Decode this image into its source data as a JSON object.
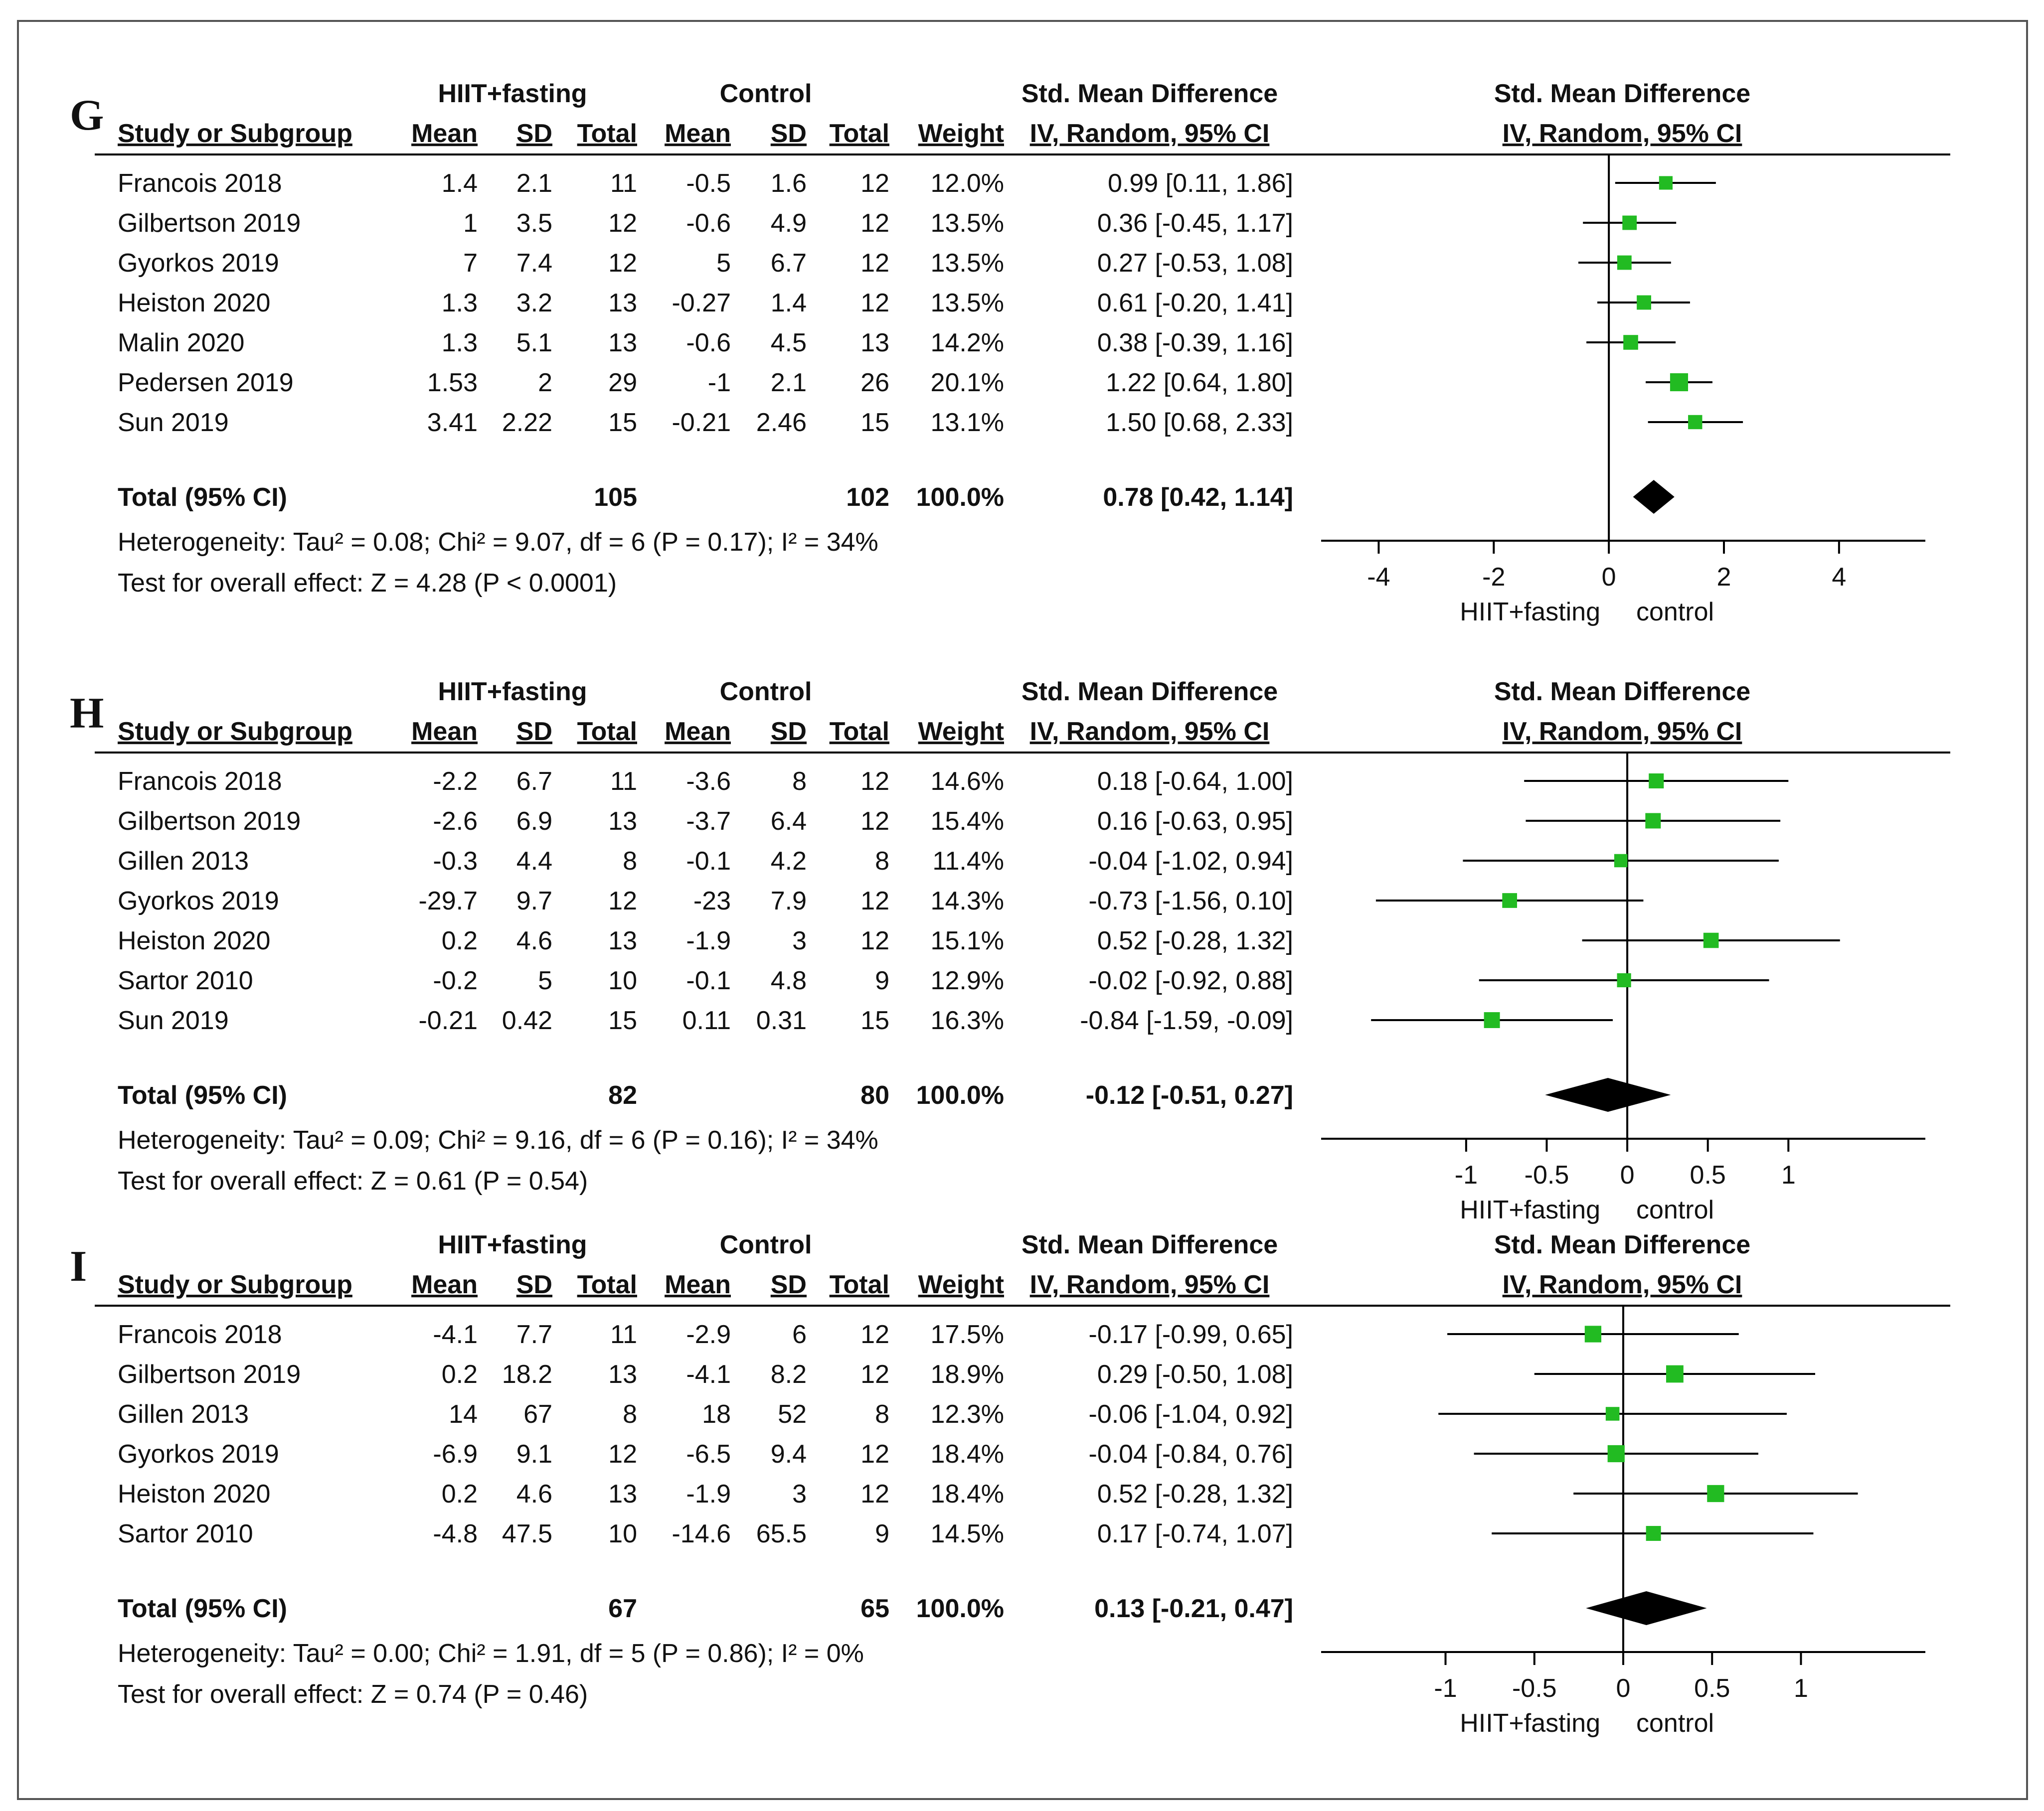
{
  "figure": {
    "colors": {
      "marker": "#22bb22",
      "line": "#000000",
      "diamond": "#000000",
      "text": "#111111",
      "frame": "#555555"
    },
    "col_headers": {
      "group1": "HIIT+fasting",
      "group2": "Control",
      "smd_top": "Std. Mean Difference",
      "smd_ci": "IV, Random, 95% CI",
      "plot_top": "Std. Mean Difference",
      "plot_ci": "IV, Random, 95% CI",
      "study": "Study or Subgroup",
      "mean": "Mean",
      "sd": "SD",
      "total": "Total",
      "weight": "Weight"
    },
    "axis_labels": {
      "left": "HIIT+fasting",
      "right": "control"
    }
  },
  "chart_data": [
    {
      "type": "forest",
      "panel_label": "G",
      "xlim": [
        -5,
        5.5
      ],
      "ticks": [
        "-4",
        "-2",
        "0",
        "2",
        "4"
      ],
      "tick_values": [
        -4,
        -2,
        0,
        2,
        4
      ],
      "studies": [
        {
          "name": "Francois 2018",
          "m1": "1.4",
          "sd1": "2.1",
          "n1": "11",
          "m2": "-0.5",
          "sd2": "1.6",
          "n2": "12",
          "weight": "12.0%",
          "ci_text": "0.99 [0.11, 1.86]",
          "est": 0.99,
          "lo": 0.11,
          "hi": 1.86
        },
        {
          "name": "Gilbertson 2019",
          "m1": "1",
          "sd1": "3.5",
          "n1": "12",
          "m2": "-0.6",
          "sd2": "4.9",
          "n2": "12",
          "weight": "13.5%",
          "ci_text": "0.36 [-0.45, 1.17]",
          "est": 0.36,
          "lo": -0.45,
          "hi": 1.17
        },
        {
          "name": "Gyorkos 2019",
          "m1": "7",
          "sd1": "7.4",
          "n1": "12",
          "m2": "5",
          "sd2": "6.7",
          "n2": "12",
          "weight": "13.5%",
          "ci_text": "0.27 [-0.53, 1.08]",
          "est": 0.27,
          "lo": -0.53,
          "hi": 1.08
        },
        {
          "name": "Heiston 2020",
          "m1": "1.3",
          "sd1": "3.2",
          "n1": "13",
          "m2": "-0.27",
          "sd2": "1.4",
          "n2": "12",
          "weight": "13.5%",
          "ci_text": "0.61 [-0.20, 1.41]",
          "est": 0.61,
          "lo": -0.2,
          "hi": 1.41
        },
        {
          "name": "Malin 2020",
          "m1": "1.3",
          "sd1": "5.1",
          "n1": "13",
          "m2": "-0.6",
          "sd2": "4.5",
          "n2": "13",
          "weight": "14.2%",
          "ci_text": "0.38 [-0.39, 1.16]",
          "est": 0.38,
          "lo": -0.39,
          "hi": 1.16
        },
        {
          "name": "Pedersen 2019",
          "m1": "1.53",
          "sd1": "2",
          "n1": "29",
          "m2": "-1",
          "sd2": "2.1",
          "n2": "26",
          "weight": "20.1%",
          "ci_text": "1.22 [0.64, 1.80]",
          "est": 1.22,
          "lo": 0.64,
          "hi": 1.8
        },
        {
          "name": "Sun 2019",
          "m1": "3.41",
          "sd1": "2.22",
          "n1": "15",
          "m2": "-0.21",
          "sd2": "2.46",
          "n2": "15",
          "weight": "13.1%",
          "ci_text": "1.50 [0.68, 2.33]",
          "est": 1.5,
          "lo": 0.68,
          "hi": 2.33
        }
      ],
      "total": {
        "label": "Total (95% CI)",
        "n1": "105",
        "n2": "102",
        "weight": "100.0%",
        "ci_text": "0.78 [0.42, 1.14]",
        "est": 0.78,
        "lo": 0.42,
        "hi": 1.14
      },
      "heterogeneity": "Heterogeneity: Tau² = 0.08; Chi² = 9.07, df = 6 (P = 0.17); I² = 34%",
      "overall": "Test for overall effect: Z = 4.28 (P < 0.0001)"
    },
    {
      "type": "forest",
      "panel_label": "H",
      "xlim": [
        -1.9,
        1.85
      ],
      "ticks": [
        "-1",
        "-0.5",
        "0",
        "0.5",
        "1"
      ],
      "tick_values": [
        -1,
        -0.5,
        0,
        0.5,
        1
      ],
      "studies": [
        {
          "name": "Francois 2018",
          "m1": "-2.2",
          "sd1": "6.7",
          "n1": "11",
          "m2": "-3.6",
          "sd2": "8",
          "n2": "12",
          "weight": "14.6%",
          "ci_text": "0.18 [-0.64, 1.00]",
          "est": 0.18,
          "lo": -0.64,
          "hi": 1.0
        },
        {
          "name": "Gilbertson 2019",
          "m1": "-2.6",
          "sd1": "6.9",
          "n1": "13",
          "m2": "-3.7",
          "sd2": "6.4",
          "n2": "12",
          "weight": "15.4%",
          "ci_text": "0.16 [-0.63, 0.95]",
          "est": 0.16,
          "lo": -0.63,
          "hi": 0.95
        },
        {
          "name": "Gillen 2013",
          "m1": "-0.3",
          "sd1": "4.4",
          "n1": "8",
          "m2": "-0.1",
          "sd2": "4.2",
          "n2": "8",
          "weight": "11.4%",
          "ci_text": "-0.04 [-1.02, 0.94]",
          "est": -0.04,
          "lo": -1.02,
          "hi": 0.94
        },
        {
          "name": "Gyorkos 2019",
          "m1": "-29.7",
          "sd1": "9.7",
          "n1": "12",
          "m2": "-23",
          "sd2": "7.9",
          "n2": "12",
          "weight": "14.3%",
          "ci_text": "-0.73 [-1.56, 0.10]",
          "est": -0.73,
          "lo": -1.56,
          "hi": 0.1
        },
        {
          "name": "Heiston 2020",
          "m1": "0.2",
          "sd1": "4.6",
          "n1": "13",
          "m2": "-1.9",
          "sd2": "3",
          "n2": "12",
          "weight": "15.1%",
          "ci_text": "0.52 [-0.28, 1.32]",
          "est": 0.52,
          "lo": -0.28,
          "hi": 1.32
        },
        {
          "name": "Sartor 2010",
          "m1": "-0.2",
          "sd1": "5",
          "n1": "10",
          "m2": "-0.1",
          "sd2": "4.8",
          "n2": "9",
          "weight": "12.9%",
          "ci_text": "-0.02 [-0.92, 0.88]",
          "est": -0.02,
          "lo": -0.92,
          "hi": 0.88
        },
        {
          "name": "Sun 2019",
          "m1": "-0.21",
          "sd1": "0.42",
          "n1": "15",
          "m2": "0.11",
          "sd2": "0.31",
          "n2": "15",
          "weight": "16.3%",
          "ci_text": "-0.84 [-1.59, -0.09]",
          "est": -0.84,
          "lo": -1.59,
          "hi": -0.09
        }
      ],
      "total": {
        "label": "Total (95% CI)",
        "n1": "82",
        "n2": "80",
        "weight": "100.0%",
        "ci_text": "-0.12 [-0.51, 0.27]",
        "est": -0.12,
        "lo": -0.51,
        "hi": 0.27
      },
      "heterogeneity": "Heterogeneity: Tau² = 0.09; Chi² = 9.16, df = 6 (P = 0.16); I² = 34%",
      "overall": "Test for overall effect: Z = 0.61 (P = 0.54)"
    },
    {
      "type": "forest",
      "panel_label": "I",
      "xlim": [
        -1.7,
        1.7
      ],
      "ticks": [
        "-1",
        "-0.5",
        "0",
        "0.5",
        "1"
      ],
      "tick_values": [
        -1,
        -0.5,
        0,
        0.5,
        1
      ],
      "studies": [
        {
          "name": "Francois 2018",
          "m1": "-4.1",
          "sd1": "7.7",
          "n1": "11",
          "m2": "-2.9",
          "sd2": "6",
          "n2": "12",
          "weight": "17.5%",
          "ci_text": "-0.17 [-0.99, 0.65]",
          "est": -0.17,
          "lo": -0.99,
          "hi": 0.65
        },
        {
          "name": "Gilbertson 2019",
          "m1": "0.2",
          "sd1": "18.2",
          "n1": "13",
          "m2": "-4.1",
          "sd2": "8.2",
          "n2": "12",
          "weight": "18.9%",
          "ci_text": "0.29 [-0.50, 1.08]",
          "est": 0.29,
          "lo": -0.5,
          "hi": 1.08
        },
        {
          "name": "Gillen 2013",
          "m1": "14",
          "sd1": "67",
          "n1": "8",
          "m2": "18",
          "sd2": "52",
          "n2": "8",
          "weight": "12.3%",
          "ci_text": "-0.06 [-1.04, 0.92]",
          "est": -0.06,
          "lo": -1.04,
          "hi": 0.92
        },
        {
          "name": "Gyorkos 2019",
          "m1": "-6.9",
          "sd1": "9.1",
          "n1": "12",
          "m2": "-6.5",
          "sd2": "9.4",
          "n2": "12",
          "weight": "18.4%",
          "ci_text": "-0.04 [-0.84, 0.76]",
          "est": -0.04,
          "lo": -0.84,
          "hi": 0.76
        },
        {
          "name": "Heiston 2020",
          "m1": "0.2",
          "sd1": "4.6",
          "n1": "13",
          "m2": "-1.9",
          "sd2": "3",
          "n2": "12",
          "weight": "18.4%",
          "ci_text": "0.52 [-0.28, 1.32]",
          "est": 0.52,
          "lo": -0.28,
          "hi": 1.32
        },
        {
          "name": "Sartor 2010",
          "m1": "-4.8",
          "sd1": "47.5",
          "n1": "10",
          "m2": "-14.6",
          "sd2": "65.5",
          "n2": "9",
          "weight": "14.5%",
          "ci_text": "0.17 [-0.74, 1.07]",
          "est": 0.17,
          "lo": -0.74,
          "hi": 1.07
        }
      ],
      "total": {
        "label": "Total (95% CI)",
        "n1": "67",
        "n2": "65",
        "weight": "100.0%",
        "ci_text": "0.13 [-0.21, 0.47]",
        "est": 0.13,
        "lo": -0.21,
        "hi": 0.47
      },
      "heterogeneity": "Heterogeneity: Tau² = 0.00; Chi² = 1.91, df = 5 (P = 0.86); I² = 0%",
      "overall": "Test for overall effect: Z = 0.74 (P = 0.46)"
    }
  ]
}
